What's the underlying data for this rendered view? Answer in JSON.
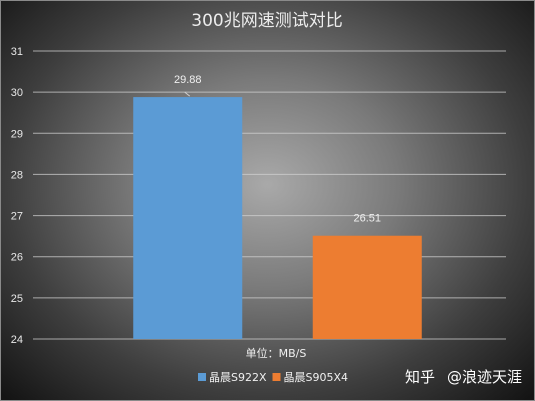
{
  "chart_data": {
    "type": "bar",
    "title": "300兆网速测试对比",
    "categories": [
      "晶晨S922X",
      "晶晨S905X4"
    ],
    "values": [
      29.88,
      26.51
    ],
    "data_labels": [
      "29.88",
      "26.51"
    ],
    "colors": [
      "#5b9bd5",
      "#ed7d31"
    ],
    "xlabel": "单位：MB/S",
    "ylabel": "",
    "ylim": [
      24,
      31
    ],
    "yticks": [
      24,
      25,
      26,
      27,
      28,
      29,
      30,
      31
    ],
    "grid": true,
    "legend": {
      "position": "bottom",
      "entries": [
        {
          "name": "晶晨S922X",
          "color": "#5b9bd5"
        },
        {
          "name": "晶晨S905X4",
          "color": "#ed7d31"
        }
      ]
    }
  },
  "watermark": {
    "platform": "知乎",
    "author": "@浪迹天涯"
  }
}
